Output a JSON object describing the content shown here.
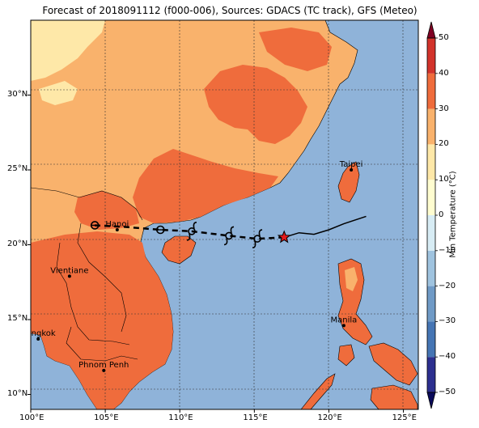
{
  "title": "Forecast of 2018091112 (f000-006), Sources: GDACS (TC track), GFS (Meteo)",
  "map": {
    "lon_labels": [
      "100°E",
      "105°E",
      "110°E",
      "115°E",
      "120°E",
      "125°E"
    ],
    "lat_labels": [
      "30°N",
      "25°N",
      "20°N",
      "15°N",
      "10°N"
    ],
    "lon_range": [
      100,
      126
    ],
    "lat_range": [
      9,
      35
    ],
    "colors": {
      "ocean": "#8fb3d9",
      "warm_orange": "#ef6c3c",
      "light_orange": "#f9b26c",
      "pale_yellow": "#fee8a8",
      "border": "#000000"
    },
    "cities": [
      {
        "name": "Taipei",
        "lon": 121.5,
        "lat": 25.0
      },
      {
        "name": "Hanoi",
        "lon": 105.8,
        "lat": 21.0
      },
      {
        "name": "Vientiane",
        "lon": 102.6,
        "lat": 17.9
      },
      {
        "name": "Manila",
        "lon": 121.0,
        "lat": 14.6
      },
      {
        "name": "Bangkok",
        "lon": 100.5,
        "lat": 13.7
      },
      {
        "name": "Phnom Penh",
        "lon": 104.9,
        "lat": 11.6
      }
    ],
    "track_observed": [
      [
        122.5,
        21.9
      ],
      [
        121.0,
        21.4
      ],
      [
        120.0,
        21.0
      ],
      [
        119.0,
        20.7
      ],
      [
        118.0,
        20.8
      ],
      [
        117.0,
        20.5
      ]
    ],
    "track_forecast": [
      [
        117.0,
        20.5
      ],
      [
        115.2,
        20.4
      ],
      [
        113.3,
        20.6
      ],
      [
        110.8,
        20.9
      ],
      [
        108.7,
        21.0
      ],
      [
        106.2,
        21.2
      ],
      [
        104.3,
        21.3
      ]
    ],
    "current_position": {
      "lon": 117.0,
      "lat": 20.5,
      "symbol": "red-star"
    },
    "storm_symbols": [
      {
        "lon": 115.2,
        "lat": 20.4,
        "kind": "typhoon"
      },
      {
        "lon": 113.3,
        "lat": 20.6,
        "kind": "typhoon"
      },
      {
        "lon": 110.8,
        "lat": 20.9,
        "kind": "typhoon"
      },
      {
        "lon": 108.7,
        "lat": 21.0,
        "kind": "depression"
      },
      {
        "lon": 104.3,
        "lat": 21.3,
        "kind": "depression"
      }
    ]
  },
  "colorbar": {
    "title": "Min Temperature (°C)",
    "tick_labels": [
      "50",
      "40",
      "30",
      "20",
      "10",
      "0",
      "−10",
      "−20",
      "−30",
      "−40",
      "−50"
    ],
    "levels": [
      -50,
      -40,
      -30,
      -20,
      -10,
      0,
      10,
      20,
      30,
      40,
      50
    ],
    "colors": [
      "#2c2f8f",
      "#4575b4",
      "#6f9ac6",
      "#9fc3df",
      "#d7ecf4",
      "#fffdd0",
      "#fee8a8",
      "#f9b26c",
      "#ef6c3c",
      "#d2332b",
      "#9a0a26"
    ],
    "extend_top_color": "#7f0023",
    "extend_bottom_color": "#0a0a5a"
  }
}
